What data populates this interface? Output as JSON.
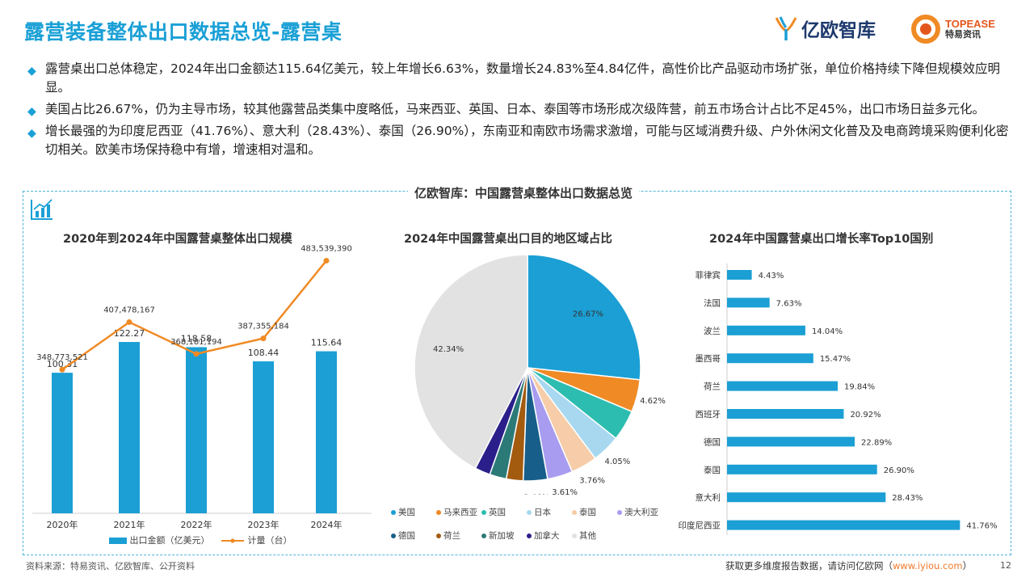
{
  "title": "露营装备整体出口数据总览-露营桌",
  "brands": {
    "yiou": "亿欧智库",
    "topease_en": "TOPEASE",
    "topease_cn": "特易资讯"
  },
  "bullets": [
    "露营桌出口总体稳定，2024年出口金额达115.64亿美元，较上年增长6.63%，数量增长24.83%至4.84亿件，高性价比产品驱动市场扩张，单位价格持续下降但规模效应明显。",
    "美国占比26.67%，仍为主导市场，较其他露营品类集中度略低，马来西亚、英国、日本、泰国等市场形成次级阵营，前五市场合计占比不足45%，出口市场日益多元化。",
    "增长最强的为印度尼西亚（41.76%）、意大利（28.43%）、泰国（26.90%），东南亚和南欧市场需求激增，可能与区域消费升级、户外休闲文化普及及电商跨境采购便利化密切相关。欧美市场保持稳中有增，增速相对温和。"
  ],
  "dashboard_title": "亿欧智库：中国露营桌整体出口数据总览",
  "footer": {
    "source": "资料来源：特易资讯、亿欧智库、公开资料",
    "cta": "获取更多维度报告数据，请访问亿欧网（",
    "link": "www.iyiou.com",
    "cta_end": "）",
    "page": "12"
  },
  "colors": {
    "accent": "#1aa0d6",
    "orange": "#f08a24"
  },
  "chart_data": [
    {
      "type": "bar",
      "title": "2020年到2024年中国露营桌整体出口规模",
      "categories": [
        "2020年",
        "2021年",
        "2022年",
        "2023年",
        "2024年"
      ],
      "series": [
        {
          "name": "出口金额（亿美元）",
          "type": "bar",
          "color": "#1b9fd4",
          "values": [
            100.31,
            122.27,
            118.58,
            108.44,
            115.64
          ]
        },
        {
          "name": "计量（台）",
          "type": "line",
          "color": "#f08a24",
          "values": [
            348773521,
            407478167,
            368181194,
            387355184,
            483539390
          ]
        }
      ],
      "labels": {
        "bar": [
          "100.31",
          "122.27",
          "118.58",
          "108.44",
          "115.64"
        ],
        "line": [
          "348,773,521",
          "407,478,167",
          "368,181,194",
          "387,355,184",
          "483,539,390"
        ]
      }
    },
    {
      "type": "pie",
      "title": "2024年中国露营桌出口目的地区域占比",
      "slices": [
        {
          "name": "美国",
          "value": 26.67,
          "label": "26.67%",
          "color": "#1b9fd4"
        },
        {
          "name": "马来西亚",
          "value": 4.62,
          "label": "4.62%",
          "color": "#f08a24"
        },
        {
          "name": "英国",
          "value": 4.4,
          "label": "",
          "color": "#2dbdb0"
        },
        {
          "name": "日本",
          "value": 4.05,
          "label": "4.05%",
          "color": "#a8d8f0"
        },
        {
          "name": "泰国",
          "value": 3.76,
          "label": "3.76%",
          "color": "#f6cda8"
        },
        {
          "name": "澳大利亚",
          "value": 3.61,
          "label": "3.61%",
          "color": "#a89cf0"
        },
        {
          "name": "德国",
          "value": 3.46,
          "label": "3.46%",
          "color": "#175f8a"
        },
        {
          "name": "荷兰",
          "value": 2.4,
          "label": "",
          "color": "#a35b10"
        },
        {
          "name": "新加坡",
          "value": 2.4,
          "label": "",
          "color": "#2b7a78"
        },
        {
          "name": "加拿大",
          "value": 2.2,
          "label": "",
          "color": "#2a1f8a"
        },
        {
          "name": "其他",
          "value": 42.34,
          "label": "42.34%",
          "color": "#e2e2e2"
        }
      ]
    },
    {
      "type": "bar",
      "orientation": "horizontal",
      "title": "2024年中国露营桌出口增长率Top10国别",
      "categories": [
        "菲律宾",
        "法国",
        "波兰",
        "墨西哥",
        "荷兰",
        "西班牙",
        "德国",
        "泰国",
        "意大利",
        "印度尼西亚"
      ],
      "values": [
        4.43,
        7.63,
        14.04,
        15.47,
        19.84,
        20.92,
        22.89,
        26.9,
        28.43,
        41.76
      ],
      "labels": [
        "4.43%",
        "7.63%",
        "14.04%",
        "15.47%",
        "19.84%",
        "20.92%",
        "22.89%",
        "26.90%",
        "28.43%",
        "41.76%"
      ]
    }
  ]
}
